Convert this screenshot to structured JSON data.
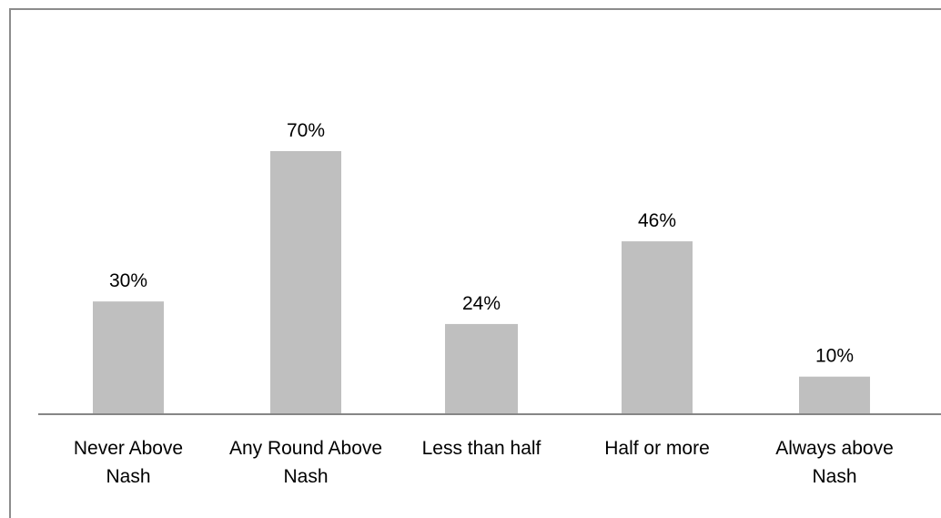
{
  "chart_data": {
    "type": "bar",
    "categories": [
      [
        "Never Above",
        "Nash"
      ],
      [
        "Any Round Above",
        "Nash"
      ],
      [
        "Less than half"
      ],
      [
        "Half or more"
      ],
      [
        "Always above",
        "Nash"
      ]
    ],
    "values": [
      30,
      70,
      24,
      46,
      10
    ],
    "value_labels": [
      "30%",
      "70%",
      "24%",
      "46%",
      "10%"
    ],
    "ylim": [
      0,
      100
    ],
    "grid": false,
    "bar_color": "#bfbfbf",
    "axis_color": "#868686"
  }
}
